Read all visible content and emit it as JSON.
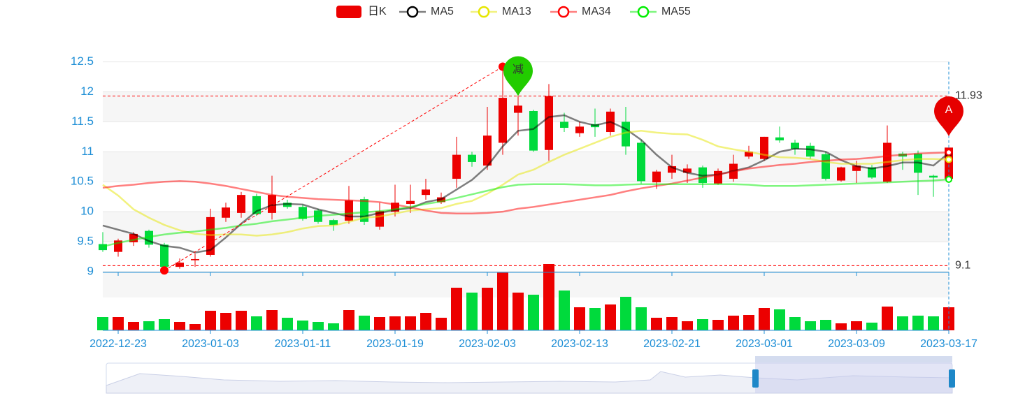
{
  "chart_data": {
    "type": "candlestick",
    "categories": [
      null,
      "2022-12-23",
      null,
      null,
      null,
      null,
      null,
      "2023-01-03",
      null,
      null,
      null,
      null,
      null,
      "2023-01-11",
      null,
      null,
      null,
      null,
      null,
      "2023-01-19",
      null,
      null,
      null,
      null,
      null,
      "2023-02-03",
      null,
      null,
      null,
      null,
      null,
      "2023-02-13",
      null,
      null,
      null,
      null,
      null,
      "2023-02-21",
      null,
      null,
      null,
      null,
      null,
      "2023-03-01",
      null,
      null,
      null,
      null,
      null,
      "2023-03-09",
      null,
      null,
      null,
      null,
      null,
      "2023-03-17"
    ],
    "series": [
      {
        "name": "日K",
        "type": "candlestick",
        "color": "#ec0000",
        "down_color": "#00da3c",
        "values": [
          [
            9.46,
            9.36,
            9.33,
            9.66
          ],
          [
            9.33,
            9.52,
            9.25,
            9.55
          ],
          [
            9.49,
            9.63,
            9.43,
            9.66
          ],
          [
            9.68,
            9.45,
            9.4,
            9.7
          ],
          [
            9.45,
            9.08,
            9.02,
            9.48
          ],
          [
            9.08,
            9.15,
            9.05,
            9.22
          ],
          [
            9.19,
            9.21,
            9.08,
            9.3
          ],
          [
            9.28,
            9.91,
            9.25,
            10.05
          ],
          [
            9.9,
            10.07,
            9.83,
            10.15
          ],
          [
            9.98,
            10.28,
            9.9,
            10.33
          ],
          [
            10.26,
            9.96,
            9.93,
            10.3
          ],
          [
            9.98,
            10.28,
            9.87,
            10.6
          ],
          [
            10.15,
            10.08,
            10.05,
            10.2
          ],
          [
            10.08,
            9.88,
            9.85,
            10.12
          ],
          [
            10.02,
            9.83,
            9.8,
            10.05
          ],
          [
            9.86,
            9.78,
            9.68,
            9.88
          ],
          [
            9.85,
            10.19,
            9.8,
            10.43
          ],
          [
            10.21,
            9.83,
            9.78,
            10.25
          ],
          [
            9.75,
            10.01,
            9.7,
            10.15
          ],
          [
            10,
            10.15,
            9.92,
            10.45
          ],
          [
            10.13,
            10.18,
            9.98,
            10.45
          ],
          [
            10.28,
            10.37,
            10.2,
            10.55
          ],
          [
            10.16,
            10.24,
            10.13,
            10.32
          ],
          [
            10.55,
            10.95,
            10.4,
            11.25
          ],
          [
            10.95,
            10.83,
            10.75,
            11
          ],
          [
            10.77,
            11.27,
            10.7,
            11.75
          ],
          [
            11.15,
            11.9,
            10.95,
            12.42
          ],
          [
            11.65,
            11.77,
            11.27,
            11.95
          ],
          [
            11.68,
            11.02,
            11,
            11.7
          ],
          [
            11.03,
            11.93,
            10.85,
            12.13
          ],
          [
            11.5,
            11.4,
            11.33,
            11.65
          ],
          [
            11.31,
            11.42,
            11.25,
            11.5
          ],
          [
            11.46,
            11.41,
            11.25,
            11.72
          ],
          [
            11.33,
            11.67,
            11.27,
            11.72
          ],
          [
            11.5,
            11.09,
            10.95,
            11.75
          ],
          [
            11.15,
            10.51,
            10.47,
            11.2
          ],
          [
            10.49,
            10.67,
            10.38,
            10.7
          ],
          [
            10.65,
            10.76,
            10.55,
            10.95
          ],
          [
            10.65,
            10.72,
            10.48,
            10.79
          ],
          [
            10.74,
            10.48,
            10.4,
            10.77
          ],
          [
            10.47,
            10.68,
            10.45,
            10.72
          ],
          [
            10.55,
            10.8,
            10.5,
            10.95
          ],
          [
            10.92,
            11,
            10.88,
            11.1
          ],
          [
            10.88,
            11.25,
            10.85,
            11.25
          ],
          [
            11.24,
            11.19,
            11.15,
            11.42
          ],
          [
            11.15,
            11.05,
            10.95,
            11.2
          ],
          [
            11.1,
            10.92,
            10.88,
            11.15
          ],
          [
            10.96,
            10.55,
            10.52,
            11
          ],
          [
            10.52,
            10.74,
            10.5,
            10.75
          ],
          [
            10.68,
            10.77,
            10.48,
            10.85
          ],
          [
            10.74,
            10.57,
            10.55,
            10.78
          ],
          [
            10.5,
            11.15,
            10.48,
            11.44
          ],
          [
            10.97,
            10.92,
            10.7,
            11
          ],
          [
            10.97,
            10.65,
            10.28,
            11.02
          ],
          [
            10.6,
            10.57,
            10.25,
            10.62
          ],
          [
            10.55,
            11.07,
            10.52,
            11.1
          ]
        ]
      },
      {
        "name": "MA5",
        "type": "line",
        "color": "#000000",
        "values": [
          9.77,
          9.7,
          9.63,
          9.51,
          9.43,
          9.4,
          9.32,
          9.36,
          9.57,
          9.8,
          10.01,
          10.11,
          10.13,
          10.12,
          10.04,
          9.98,
          9.92,
          9.92,
          9.98,
          10.03,
          10.06,
          10.16,
          10.21,
          10.37,
          10.53,
          10.76,
          11.09,
          11.35,
          11.38,
          11.58,
          11.61,
          11.5,
          11.44,
          11.5,
          11.38,
          11.2,
          10.95,
          10.74,
          10.65,
          10.6,
          10.62,
          10.68,
          10.74,
          10.86,
          11,
          11.05,
          11.04,
          11,
          10.86,
          10.76,
          10.72,
          10.76,
          10.82,
          10.82,
          10.77,
          10.98
        ]
      },
      {
        "name": "MA13",
        "type": "line",
        "color": "#e6e600",
        "values": [
          10.45,
          10.27,
          10.04,
          9.9,
          9.78,
          9.69,
          9.63,
          9.61,
          9.62,
          9.62,
          9.6,
          9.62,
          9.66,
          9.72,
          9.76,
          9.77,
          9.83,
          9.9,
          9.92,
          9.97,
          10.02,
          10.04,
          10.06,
          10.13,
          10.18,
          10.3,
          10.45,
          10.62,
          10.7,
          10.83,
          10.95,
          11.05,
          11.15,
          11.25,
          11.32,
          11.35,
          11.32,
          11.3,
          11.29,
          11.2,
          11.09,
          11.04,
          11,
          10.95,
          10.91,
          10.9,
          10.88,
          10.83,
          10.8,
          10.8,
          10.8,
          10.83,
          10.86,
          10.88,
          10.88,
          10.87
        ]
      },
      {
        "name": "MA34",
        "type": "line",
        "color": "#ff0000",
        "values": [
          10.4,
          10.43,
          10.45,
          10.48,
          10.5,
          10.51,
          10.5,
          10.47,
          10.43,
          10.38,
          10.33,
          10.28,
          10.25,
          10.23,
          10.21,
          10.2,
          10.19,
          10.18,
          10.16,
          10.12,
          10.07,
          10.02,
          9.98,
          9.97,
          9.97,
          9.98,
          10,
          10.05,
          10.08,
          10.12,
          10.16,
          10.2,
          10.24,
          10.28,
          10.34,
          10.39,
          10.43,
          10.47,
          10.52,
          10.57,
          10.62,
          10.67,
          10.72,
          10.75,
          10.78,
          10.8,
          10.83,
          10.85,
          10.87,
          10.88,
          10.9,
          10.93,
          10.95,
          10.97,
          10.98,
          10.99
        ]
      },
      {
        "name": "MA55",
        "type": "line",
        "color": "#00ee00",
        "values": [
          9.42,
          9.48,
          9.53,
          9.58,
          9.62,
          9.65,
          9.67,
          9.7,
          9.73,
          9.77,
          9.8,
          9.84,
          9.87,
          9.9,
          9.93,
          9.95,
          9.97,
          9.99,
          10.01,
          10.04,
          10.08,
          10.13,
          10.17,
          10.23,
          10.29,
          10.35,
          10.41,
          10.45,
          10.46,
          10.46,
          10.46,
          10.45,
          10.44,
          10.44,
          10.45,
          10.46,
          10.46,
          10.46,
          10.46,
          10.46,
          10.46,
          10.46,
          10.45,
          10.43,
          10.43,
          10.43,
          10.44,
          10.45,
          10.46,
          10.47,
          10.48,
          10.49,
          10.5,
          10.51,
          10.52,
          10.54
        ]
      }
    ],
    "volume": [
      19,
      19,
      12,
      13,
      16,
      12,
      9,
      28,
      25,
      28,
      20,
      29,
      18,
      14,
      12,
      10,
      29,
      21,
      19,
      20,
      20,
      25,
      18,
      61,
      54,
      61,
      83,
      54,
      51,
      95,
      57,
      33,
      32,
      37,
      48,
      33,
      18,
      19,
      13,
      16,
      15,
      21,
      22,
      32,
      30,
      19,
      13,
      15,
      10,
      13,
      11,
      34,
      20,
      21,
      20,
      33
    ],
    "volume_ylim": [
      0,
      100
    ],
    "ylim": [
      9,
      12.5
    ],
    "yticks": [
      9,
      9.5,
      10,
      10.5,
      11,
      11.5,
      12,
      12.5
    ],
    "split_area": true,
    "mark_lines": [
      {
        "value": 11.93,
        "color": "#ff0000"
      },
      {
        "value": 9.1,
        "color": "#ff0000"
      }
    ],
    "mark_points": [
      {
        "label": "减",
        "index": 27,
        "value": 11.93,
        "color": "#22cc00"
      },
      {
        "label": "A",
        "index": 55,
        "value": 11.26,
        "color": "#e60000"
      }
    ],
    "trend_color": "#ff0000"
  }
}
